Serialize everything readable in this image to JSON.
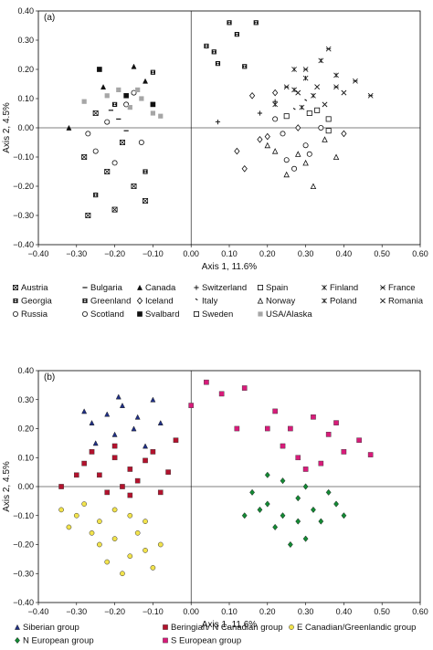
{
  "chart_data": [
    {
      "type": "scatter",
      "panel_label": "(a)",
      "xlabel": "Axis 1, 11.6%",
      "ylabel": "Axis 2, 4.5%",
      "xlim": [
        -0.4,
        0.6
      ],
      "ylim": [
        -0.4,
        0.4
      ],
      "xticks": [
        "−0.40",
        "−0.30",
        "−0.20",
        "−0.10",
        "0.00",
        "0.10",
        "0.20",
        "0.30",
        "0.40",
        "0.50",
        "0.60"
      ],
      "yticks": [
        "−0.40",
        "−0.30",
        "−0.20",
        "−0.10",
        "0.00",
        "0.10",
        "0.20",
        "0.30",
        "0.40"
      ],
      "grid": false,
      "legend_position": "bottom",
      "series": [
        {
          "name": "Austria",
          "marker": "cross-box",
          "points": [
            [
              -0.28,
              -0.1
            ],
            [
              -0.2,
              -0.28
            ],
            [
              -0.15,
              -0.2
            ],
            [
              -0.18,
              -0.05
            ],
            [
              -0.25,
              0.05
            ],
            [
              -0.22,
              -0.15
            ],
            [
              -0.12,
              -0.25
            ],
            [
              -0.27,
              -0.3
            ]
          ]
        },
        {
          "name": "Bulgaria",
          "marker": "dash",
          "points": [
            [
              -0.19,
              0.03
            ],
            [
              -0.17,
              -0.01
            ],
            [
              -0.21,
              0.06
            ]
          ]
        },
        {
          "name": "Canada",
          "marker": "triangle",
          "points": [
            [
              -0.32,
              0.0
            ],
            [
              -0.23,
              0.14
            ],
            [
              -0.12,
              0.16
            ],
            [
              -0.15,
              0.21
            ]
          ]
        },
        {
          "name": "Switzerland",
          "marker": "plus",
          "points": [
            [
              0.07,
              0.02
            ],
            [
              0.18,
              0.05
            ],
            [
              0.22,
              0.09
            ]
          ]
        },
        {
          "name": "Spain",
          "marker": "square-open",
          "points": [
            [
              0.33,
              0.06
            ],
            [
              0.25,
              0.04
            ],
            [
              0.36,
              0.03
            ]
          ]
        },
        {
          "name": "Finland",
          "marker": "asterisk",
          "points": [
            [
              0.27,
              0.2
            ],
            [
              0.34,
              0.23
            ],
            [
              0.38,
              0.18
            ],
            [
              0.3,
              0.17
            ]
          ]
        },
        {
          "name": "France",
          "marker": "x-bar",
          "points": [
            [
              0.36,
              0.27
            ],
            [
              0.43,
              0.16
            ],
            [
              0.47,
              0.11
            ],
            [
              0.3,
              0.2
            ],
            [
              0.25,
              0.14
            ],
            [
              0.38,
              0.14
            ]
          ]
        },
        {
          "name": "Georgia",
          "marker": "hourglass-box",
          "points": [
            [
              -0.2,
              0.08
            ],
            [
              -0.12,
              -0.15
            ],
            [
              -0.1,
              0.19
            ],
            [
              -0.25,
              -0.23
            ]
          ]
        },
        {
          "name": "Greenland",
          "marker": "hourglass-box",
          "points": [
            [
              0.04,
              0.28
            ],
            [
              0.06,
              0.26
            ],
            [
              0.1,
              0.36
            ],
            [
              0.12,
              0.32
            ],
            [
              0.07,
              0.22
            ],
            [
              0.17,
              0.36
            ],
            [
              0.14,
              0.21
            ]
          ]
        },
        {
          "name": "Iceland",
          "marker": "diamond-open",
          "points": [
            [
              0.16,
              0.11
            ],
            [
              0.2,
              -0.03
            ],
            [
              0.12,
              -0.08
            ],
            [
              0.4,
              -0.02
            ],
            [
              0.22,
              0.12
            ],
            [
              0.14,
              -0.14
            ],
            [
              0.28,
              0.0
            ],
            [
              0.18,
              -0.04
            ]
          ]
        },
        {
          "name": "Italy",
          "marker": "tick",
          "points": [
            [
              0.27,
              0.06
            ],
            [
              0.3,
              0.09
            ]
          ]
        },
        {
          "name": "Norway",
          "marker": "triangle-open",
          "points": [
            [
              0.22,
              -0.08
            ],
            [
              0.3,
              -0.12
            ],
            [
              0.35,
              -0.04
            ],
            [
              0.25,
              -0.16
            ],
            [
              0.32,
              -0.2
            ],
            [
              0.2,
              -0.06
            ],
            [
              0.28,
              -0.09
            ],
            [
              0.38,
              -0.1
            ]
          ]
        },
        {
          "name": "Poland",
          "marker": "asterisk",
          "points": [
            [
              0.27,
              0.13
            ],
            [
              0.32,
              0.11
            ],
            [
              0.22,
              0.08
            ],
            [
              0.29,
              0.07
            ]
          ]
        },
        {
          "name": "Romania",
          "marker": "x",
          "points": [
            [
              0.33,
              0.14
            ],
            [
              0.4,
              0.12
            ],
            [
              0.28,
              0.12
            ],
            [
              0.35,
              0.08
            ]
          ]
        },
        {
          "name": "Russia",
          "marker": "circle-open",
          "points": [
            [
              -0.27,
              -0.02
            ],
            [
              -0.22,
              0.02
            ],
            [
              -0.15,
              0.12
            ],
            [
              -0.2,
              -0.12
            ],
            [
              -0.17,
              0.08
            ],
            [
              -0.25,
              -0.08
            ],
            [
              -0.13,
              -0.05
            ]
          ]
        },
        {
          "name": "Scotland",
          "marker": "circle-open",
          "points": [
            [
              0.24,
              -0.02
            ],
            [
              0.3,
              -0.06
            ],
            [
              0.27,
              -0.14
            ],
            [
              0.34,
              0.0
            ],
            [
              0.22,
              0.03
            ],
            [
              0.31,
              -0.09
            ],
            [
              0.25,
              -0.11
            ]
          ]
        },
        {
          "name": "Svalbard",
          "marker": "square",
          "points": [
            [
              -0.17,
              0.11
            ],
            [
              -0.24,
              0.2
            ],
            [
              -0.1,
              0.08
            ]
          ]
        },
        {
          "name": "Sweden",
          "marker": "square-open",
          "points": [
            [
              0.36,
              -0.01
            ],
            [
              0.31,
              0.05
            ]
          ]
        },
        {
          "name": "USA/Alaska",
          "marker": "square-gray",
          "points": [
            [
              -0.28,
              0.09
            ],
            [
              -0.22,
              0.11
            ],
            [
              -0.16,
              0.07
            ],
            [
              -0.13,
              0.1
            ],
            [
              -0.1,
              0.05
            ],
            [
              -0.19,
              0.13
            ],
            [
              -0.08,
              0.04
            ],
            [
              -0.14,
              0.13
            ]
          ]
        }
      ]
    },
    {
      "type": "scatter",
      "panel_label": "(b)",
      "xlabel": "Axis 1, 11.6%",
      "ylabel": "Axis 2, 4.5%",
      "xlim": [
        -0.4,
        0.6
      ],
      "ylim": [
        -0.4,
        0.4
      ],
      "xticks": [
        "−0.40",
        "−0.30",
        "−0.20",
        "−0.10",
        "0.00",
        "0.10",
        "0.20",
        "0.30",
        "0.40",
        "0.50",
        "0.60"
      ],
      "yticks": [
        "−0.40",
        "−0.30",
        "−0.20",
        "−0.10",
        "0.00",
        "0.10",
        "0.20",
        "0.30",
        "0.40"
      ],
      "grid": false,
      "legend_position": "bottom",
      "series": [
        {
          "name": "Siberian group",
          "marker": "triangle",
          "color": "#1f2f86",
          "points": [
            [
              -0.26,
              0.22
            ],
            [
              -0.22,
              0.25
            ],
            [
              -0.18,
              0.28
            ],
            [
              -0.14,
              0.24
            ],
            [
              -0.1,
              0.3
            ],
            [
              -0.2,
              0.18
            ],
            [
              -0.25,
              0.15
            ],
            [
              -0.15,
              0.2
            ],
            [
              -0.12,
              0.14
            ],
            [
              -0.28,
              0.26
            ],
            [
              -0.08,
              0.22
            ],
            [
              -0.19,
              0.31
            ]
          ]
        },
        {
          "name": "Beringian/ N Canadian group",
          "marker": "square",
          "color": "#b3122d",
          "points": [
            [
              -0.34,
              0.0
            ],
            [
              -0.28,
              0.08
            ],
            [
              -0.24,
              0.04
            ],
            [
              -0.2,
              0.1
            ],
            [
              -0.16,
              0.06
            ],
            [
              -0.12,
              0.09
            ],
            [
              -0.22,
              -0.02
            ],
            [
              -0.18,
              0.0
            ],
            [
              -0.26,
              0.12
            ],
            [
              -0.14,
              0.02
            ],
            [
              -0.1,
              0.12
            ],
            [
              -0.06,
              0.05
            ],
            [
              -0.04,
              0.16
            ],
            [
              -0.2,
              0.14
            ],
            [
              -0.16,
              -0.03
            ],
            [
              -0.3,
              0.04
            ],
            [
              -0.08,
              -0.02
            ]
          ]
        },
        {
          "name": "E Canadian/Greenlandic group",
          "marker": "circle",
          "color": "#f2e34c",
          "points": [
            [
              -0.28,
              -0.06
            ],
            [
              -0.24,
              -0.12
            ],
            [
              -0.2,
              -0.18
            ],
            [
              -0.16,
              -0.1
            ],
            [
              -0.12,
              -0.22
            ],
            [
              -0.22,
              -0.26
            ],
            [
              -0.18,
              -0.3
            ],
            [
              -0.26,
              -0.16
            ],
            [
              -0.14,
              -0.16
            ],
            [
              -0.1,
              -0.28
            ],
            [
              -0.3,
              -0.1
            ],
            [
              -0.2,
              -0.08
            ],
            [
              -0.16,
              -0.24
            ],
            [
              -0.24,
              -0.2
            ],
            [
              -0.12,
              -0.12
            ],
            [
              -0.32,
              -0.14
            ],
            [
              -0.34,
              -0.08
            ],
            [
              -0.08,
              -0.2
            ]
          ]
        },
        {
          "name": "N European group",
          "marker": "diamond",
          "color": "#138a34",
          "points": [
            [
              0.16,
              -0.02
            ],
            [
              0.2,
              -0.06
            ],
            [
              0.24,
              -0.1
            ],
            [
              0.28,
              -0.04
            ],
            [
              0.32,
              -0.08
            ],
            [
              0.36,
              -0.02
            ],
            [
              0.22,
              -0.14
            ],
            [
              0.3,
              -0.18
            ],
            [
              0.26,
              -0.2
            ],
            [
              0.34,
              -0.12
            ],
            [
              0.18,
              -0.08
            ],
            [
              0.38,
              -0.06
            ],
            [
              0.24,
              0.02
            ],
            [
              0.3,
              0.0
            ],
            [
              0.14,
              -0.1
            ],
            [
              0.2,
              0.04
            ],
            [
              0.4,
              -0.1
            ],
            [
              0.28,
              -0.12
            ]
          ]
        },
        {
          "name": "S European group",
          "marker": "square",
          "color": "#d81b7a",
          "points": [
            [
              0.0,
              0.28
            ],
            [
              0.04,
              0.36
            ],
            [
              0.08,
              0.32
            ],
            [
              0.14,
              0.34
            ],
            [
              0.2,
              0.2
            ],
            [
              0.24,
              0.14
            ],
            [
              0.28,
              0.1
            ],
            [
              0.32,
              0.24
            ],
            [
              0.36,
              0.18
            ],
            [
              0.4,
              0.12
            ],
            [
              0.44,
              0.16
            ],
            [
              0.47,
              0.11
            ],
            [
              0.3,
              0.06
            ],
            [
              0.26,
              0.2
            ],
            [
              0.22,
              0.26
            ],
            [
              0.34,
              0.08
            ],
            [
              0.38,
              0.22
            ],
            [
              0.12,
              0.2
            ]
          ]
        }
      ]
    }
  ]
}
